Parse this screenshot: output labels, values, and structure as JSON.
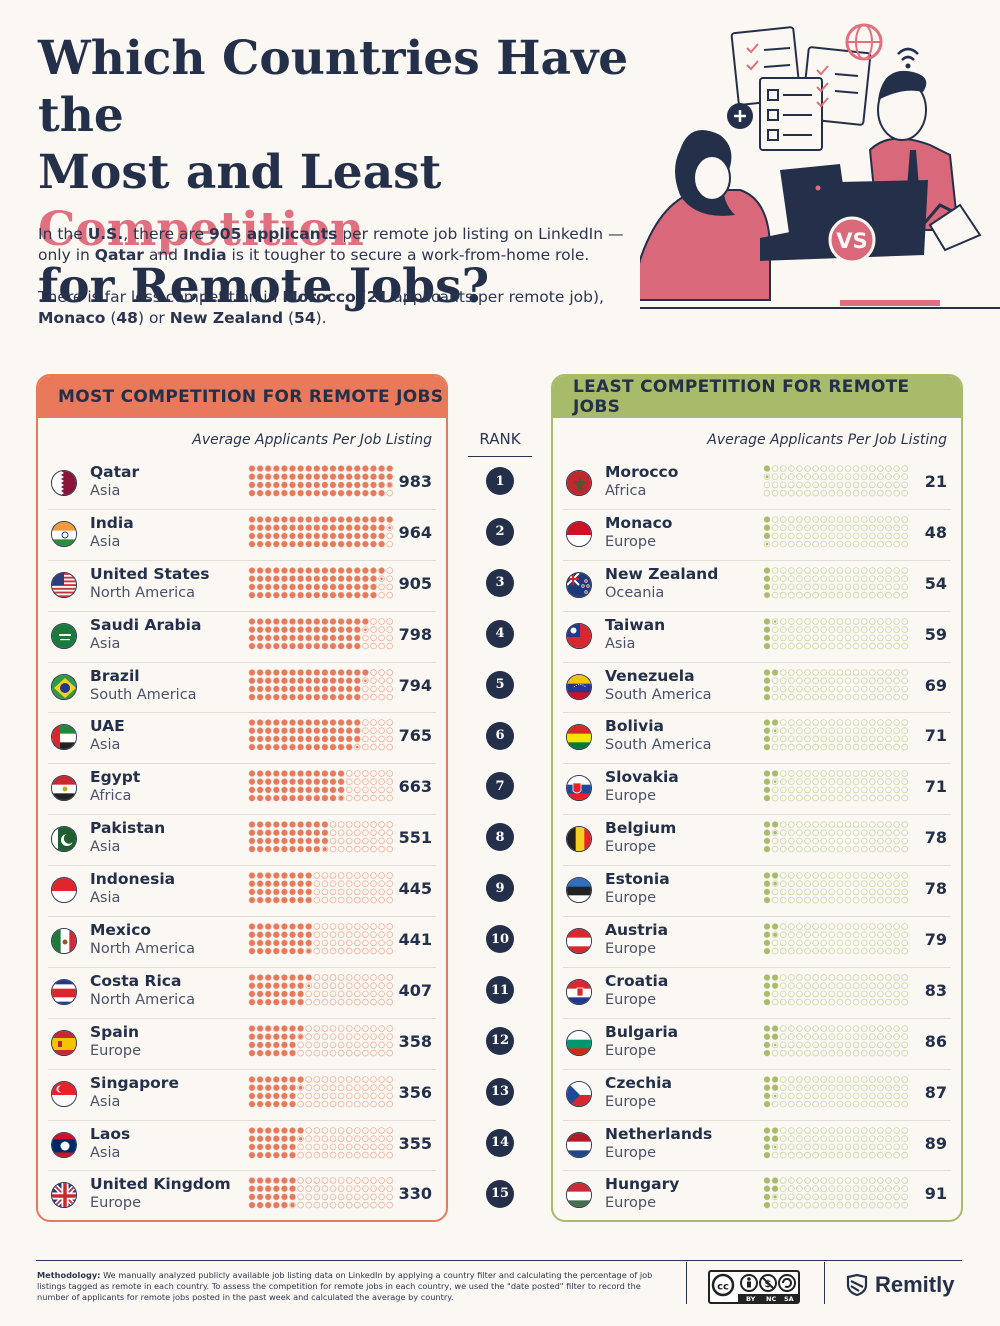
{
  "title": {
    "line1": "Which Countries Have the",
    "line2_pre": "Most and Least ",
    "line2_hl": "Competition",
    "line3": "for Remote Jobs?"
  },
  "intro": {
    "p1": [
      "In the ",
      "U.S.",
      ", there are ",
      "905 applicants",
      " per remote job listing on LinkedIn — only in ",
      "Qatar",
      " and ",
      "India",
      " is it tougher to secure a work-from-home role."
    ],
    "p2": [
      "There is far less competition in ",
      "Morocco",
      " (",
      "21",
      " applicants per remote job), ",
      "Monaco",
      " (",
      "48",
      ") or ",
      "New Zealand",
      " (",
      "54",
      ")."
    ]
  },
  "illustration": {
    "badge": "VS"
  },
  "rank_header": "RANK",
  "chart_data": [
    {
      "type": "table",
      "title": "MOST COMPETITION FOR REMOTE JOBS",
      "column_label": "Average Applicants Per Job Listing",
      "dot_max": 1000,
      "accent": "#e8795a",
      "rows": [
        {
          "rank": "1",
          "country": "Qatar",
          "region": "Asia",
          "value": 983,
          "flag": "qatar-flag"
        },
        {
          "rank": "2",
          "country": "India",
          "region": "Asia",
          "value": 964,
          "flag": "india-flag"
        },
        {
          "rank": "3",
          "country": "United States",
          "region": "North America",
          "value": 905,
          "flag": "united-states-flag"
        },
        {
          "rank": "4",
          "country": "Saudi Arabia",
          "region": "Asia",
          "value": 798,
          "flag": "saudi-arabia-flag"
        },
        {
          "rank": "5",
          "country": "Brazil",
          "region": "South America",
          "value": 794,
          "flag": "brazil-flag"
        },
        {
          "rank": "6",
          "country": "UAE",
          "region": "Asia",
          "value": 765,
          "flag": "uae-flag"
        },
        {
          "rank": "7",
          "country": "Egypt",
          "region": "Africa",
          "value": 663,
          "flag": "egypt-flag"
        },
        {
          "rank": "8",
          "country": "Pakistan",
          "region": "Asia",
          "value": 551,
          "flag": "pakistan-flag"
        },
        {
          "rank": "9",
          "country": "Indonesia",
          "region": "Asia",
          "value": 445,
          "flag": "indonesia-flag"
        },
        {
          "rank": "10",
          "country": "Mexico",
          "region": "North America",
          "value": 441,
          "flag": "mexico-flag"
        },
        {
          "rank": "11",
          "country": "Costa Rica",
          "region": "North America",
          "value": 407,
          "flag": "costa-rica-flag"
        },
        {
          "rank": "12",
          "country": "Spain",
          "region": "Europe",
          "value": 358,
          "flag": "spain-flag"
        },
        {
          "rank": "13",
          "country": "Singapore",
          "region": "Asia",
          "value": 356,
          "flag": "singapore-flag"
        },
        {
          "rank": "14",
          "country": "Laos",
          "region": "Asia",
          "value": 355,
          "flag": "laos-flag"
        },
        {
          "rank": "15",
          "country": "United Kingdom",
          "region": "Europe",
          "value": 330,
          "flag": "united-kingdom-flag"
        }
      ]
    },
    {
      "type": "table",
      "title": "LEAST COMPETITION FOR REMOTE JOBS",
      "column_label": "Average Applicants Per Job Listing",
      "dot_max": 1000,
      "accent": "#a8bb6a",
      "rows": [
        {
          "rank": "1",
          "country": "Morocco",
          "region": "Africa",
          "value": 21,
          "flag": "morocco-flag"
        },
        {
          "rank": "2",
          "country": "Monaco",
          "region": "Europe",
          "value": 48,
          "flag": "monaco-flag"
        },
        {
          "rank": "3",
          "country": "New Zealand",
          "region": "Oceania",
          "value": 54,
          "flag": "new-zealand-flag"
        },
        {
          "rank": "4",
          "country": "Taiwan",
          "region": "Asia",
          "value": 59,
          "flag": "taiwan-flag"
        },
        {
          "rank": "5",
          "country": "Venezuela",
          "region": "South America",
          "value": 69,
          "flag": "venezuela-flag"
        },
        {
          "rank": "6",
          "country": "Bolivia",
          "region": "South America",
          "value": 71,
          "flag": "bolivia-flag"
        },
        {
          "rank": "7",
          "country": "Slovakia",
          "region": "Europe",
          "value": 71,
          "flag": "slovakia-flag"
        },
        {
          "rank": "8",
          "country": "Belgium",
          "region": "Europe",
          "value": 78,
          "flag": "belgium-flag"
        },
        {
          "rank": "9",
          "country": "Estonia",
          "region": "Europe",
          "value": 78,
          "flag": "estonia-flag"
        },
        {
          "rank": "10",
          "country": "Austria",
          "region": "Europe",
          "value": 79,
          "flag": "austria-flag"
        },
        {
          "rank": "11",
          "country": "Croatia",
          "region": "Europe",
          "value": 83,
          "flag": "croatia-flag"
        },
        {
          "rank": "12",
          "country": "Bulgaria",
          "region": "Europe",
          "value": 86,
          "flag": "bulgaria-flag"
        },
        {
          "rank": "13",
          "country": "Czechia",
          "region": "Europe",
          "value": 87,
          "flag": "czechia-flag"
        },
        {
          "rank": "14",
          "country": "Netherlands",
          "region": "Europe",
          "value": 89,
          "flag": "netherlands-flag"
        },
        {
          "rank": "15",
          "country": "Hungary",
          "region": "Europe",
          "value": 91,
          "flag": "hungary-flag"
        }
      ]
    }
  ],
  "footer": {
    "methodology_label": "Methodology:",
    "methodology_text": " We manually analyzed publicly available job listing data on LinkedIn by applying a country filter and calculating the percentage of job listings tagged as remote in each country. To assess the competition for remote jobs in each country, we used the \"date posted\" filter to record the number of applicants for remote jobs posted in the past week and calculated the average by country.",
    "license_labels": [
      "BY",
      "NC",
      "SA"
    ],
    "brand": "Remitly"
  }
}
